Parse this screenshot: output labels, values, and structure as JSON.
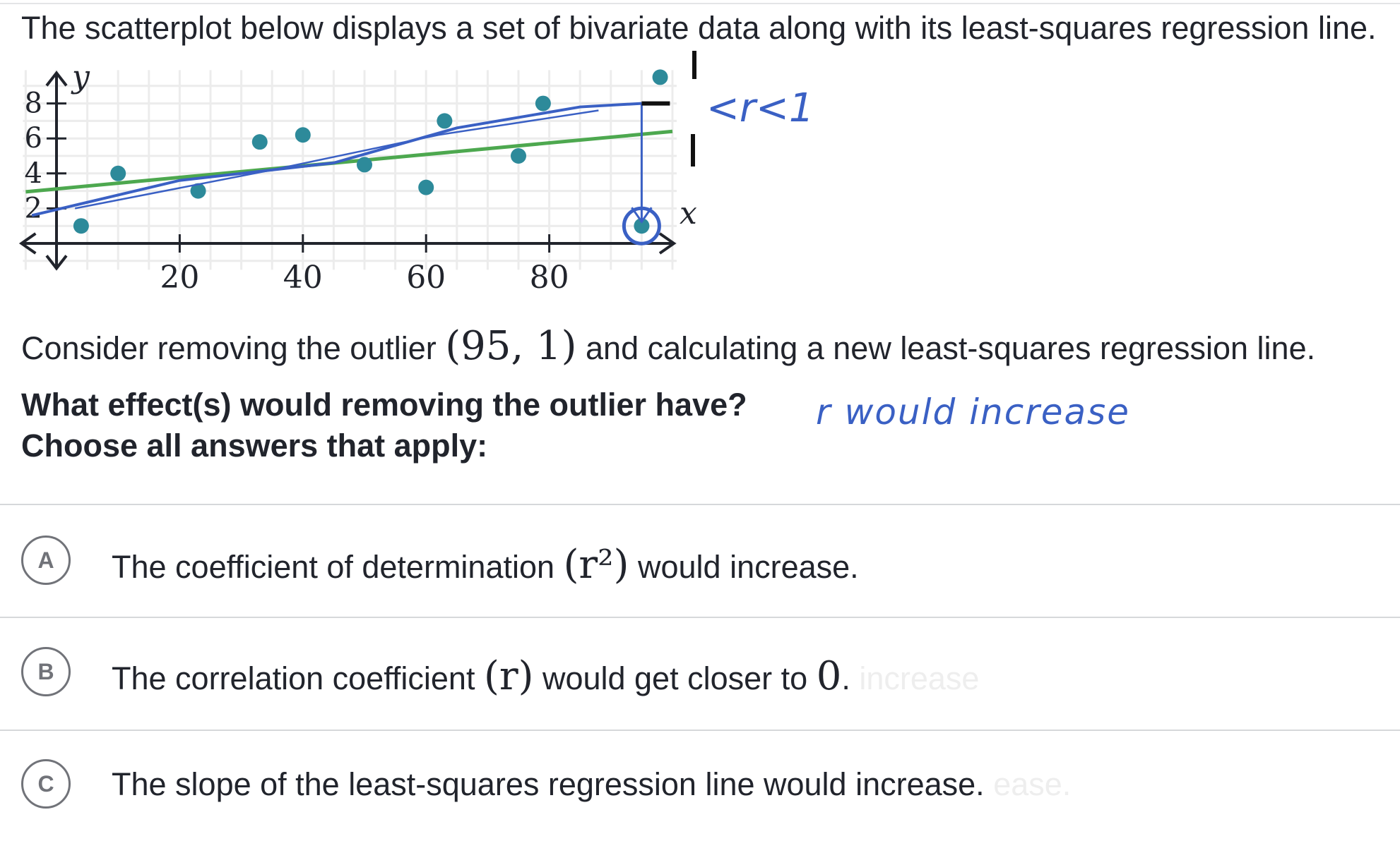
{
  "question": {
    "prompt": "The scatterplot below displays a set of bivariate data along with its least-squares regression line.",
    "consider_before": "Consider removing the outlier",
    "outlier_math": "(95, 1)",
    "consider_after": "and calculating a new least-squares regression line.",
    "question_line": "What effect(s) would removing the outlier have?",
    "instruction_line": "Choose all answers that apply:"
  },
  "choices": [
    {
      "letter": "A",
      "before": "The coefficient of determination",
      "math": "(r²)",
      "after": "would increase.",
      "ghost": ""
    },
    {
      "letter": "B",
      "before": "The correlation coefficient",
      "math": "(r)",
      "after": "would get closer to",
      "math_end": "0",
      "end": ".",
      "ghost": "increase"
    },
    {
      "letter": "C",
      "before": "The slope of the least-squares regression line would increase.",
      "math": "",
      "after": "",
      "ghost": "ease."
    }
  ],
  "annotations": {
    "inequality": "<r<1",
    "note": "r   would increase"
  },
  "chart_data": {
    "type": "scatter",
    "title": "",
    "xlabel": "x",
    "ylabel": "y",
    "x_ticks": [
      20,
      40,
      60,
      80
    ],
    "y_ticks": [
      2,
      4,
      6,
      8
    ],
    "xlim": [
      -5,
      100
    ],
    "ylim": [
      -0.5,
      9.5
    ],
    "grid": true,
    "points": [
      {
        "x": 4,
        "y": 1
      },
      {
        "x": 10,
        "y": 4
      },
      {
        "x": 23,
        "y": 3
      },
      {
        "x": 33,
        "y": 5.8
      },
      {
        "x": 40,
        "y": 6.2
      },
      {
        "x": 50,
        "y": 4.5
      },
      {
        "x": 60,
        "y": 3.2
      },
      {
        "x": 63,
        "y": 7
      },
      {
        "x": 75,
        "y": 5
      },
      {
        "x": 79,
        "y": 8
      },
      {
        "x": 95,
        "y": 1
      },
      {
        "x": 98,
        "y": 9.5
      }
    ],
    "regression_line": {
      "x": [
        -5,
        100
      ],
      "y": [
        2.95,
        6.4
      ]
    },
    "colors": {
      "points": "#2d8a9a",
      "regression": "#4da84f",
      "axis": "#21242c",
      "grid": "#ececec",
      "annotation": "#3a60c4"
    }
  }
}
